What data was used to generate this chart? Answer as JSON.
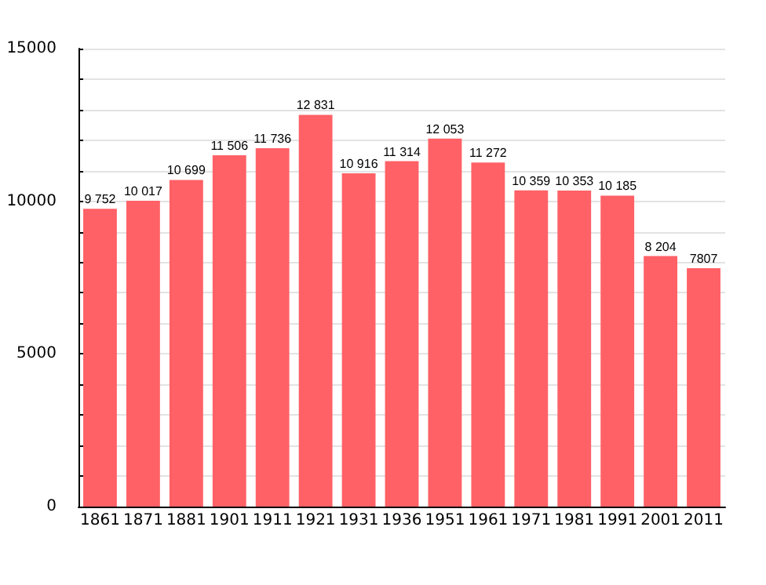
{
  "chart_data": {
    "type": "bar",
    "categories": [
      "1861",
      "1871",
      "1881",
      "1901",
      "1911",
      "1921",
      "1931",
      "1936",
      "1951",
      "1961",
      "1971",
      "1981",
      "1991",
      "2001",
      "2011"
    ],
    "values": [
      9752,
      10017,
      10699,
      11506,
      11736,
      12831,
      10916,
      11314,
      12053,
      11272,
      10359,
      10353,
      10185,
      8204,
      7807
    ],
    "value_labels": [
      "9 752",
      "10 017",
      "10 699",
      "11 506",
      "11 736",
      "12 831",
      "10 916",
      "11 314",
      "12 053",
      "11 272",
      "10 359",
      "10 353",
      "10 185",
      "8 204",
      "7807"
    ],
    "color": "#ff6166",
    "ylim": [
      0,
      15000
    ],
    "yticks": [
      0,
      {
        "value": 1000,
        "label": null
      },
      {
        "value": 2000,
        "label": null
      },
      {
        "value": 3000,
        "label": null
      },
      {
        "value": 4000,
        "label": null
      },
      5000,
      {
        "value": 6000,
        "label": null
      },
      {
        "value": 7000,
        "label": null
      },
      {
        "value": 8000,
        "label": null
      },
      {
        "value": 9000,
        "label": null
      },
      10000,
      {
        "value": 11000,
        "label": null
      },
      {
        "value": 12000,
        "label": null
      },
      {
        "value": 13000,
        "label": null
      },
      {
        "value": 14000,
        "label": null
      },
      15000
    ],
    "grid": true
  }
}
